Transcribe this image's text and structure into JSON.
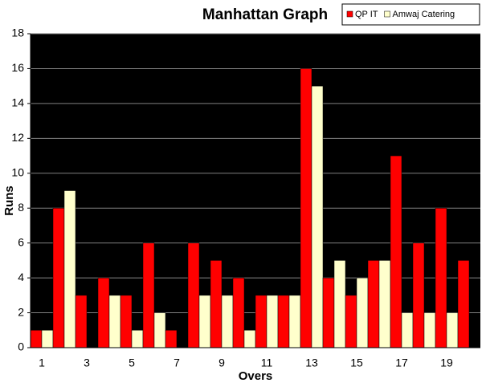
{
  "chart_data": {
    "type": "bar",
    "title": "Manhattan Graph",
    "xlabel": "Overs",
    "ylabel": "Runs",
    "categories": [
      1,
      null,
      3,
      null,
      5,
      null,
      7,
      null,
      9,
      null,
      11,
      null,
      13,
      null,
      15,
      null,
      17,
      null,
      19,
      null
    ],
    "series": [
      {
        "name": "QP IT",
        "color": "#ff0000",
        "values": [
          1,
          8,
          3,
          4,
          3,
          6,
          1,
          6,
          5,
          4,
          3,
          3,
          16,
          4,
          3,
          5,
          11,
          6,
          8,
          5
        ]
      },
      {
        "name": "Amwaj Catering",
        "color": "#ffffcc",
        "values": [
          1,
          9,
          0,
          3,
          1,
          2,
          0,
          3,
          3,
          1,
          3,
          3,
          15,
          5,
          4,
          5,
          2,
          2,
          2,
          0
        ]
      }
    ],
    "ylim": [
      0,
      18
    ],
    "yticks": [
      0,
      2,
      4,
      6,
      8,
      10,
      12,
      14,
      16,
      18
    ],
    "grid": true,
    "background": "#000000",
    "legend": "top-right"
  }
}
